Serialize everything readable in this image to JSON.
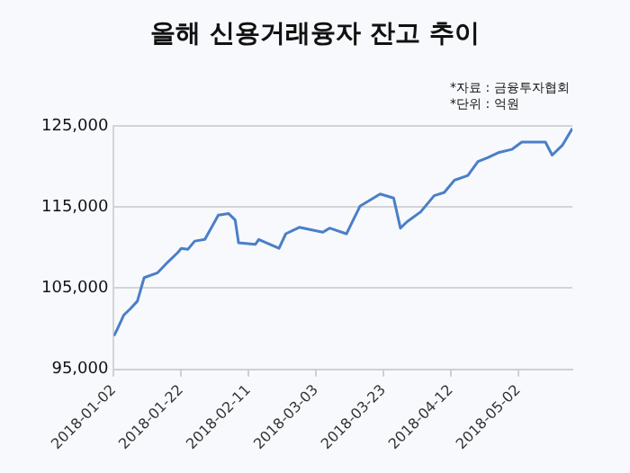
{
  "chart_data": {
    "type": "line",
    "title": "올해 신용거래융자 잔고 추이",
    "annotations": [
      "*자료 : 금융투자협회",
      "*단위 : 억원"
    ],
    "x": [
      "2018-01-02",
      "2018-01-03",
      "2018-01-05",
      "2018-01-07",
      "2018-01-09",
      "2018-01-11",
      "2018-01-15",
      "2018-01-18",
      "2018-01-21",
      "2018-01-22",
      "2018-01-24",
      "2018-01-26",
      "2018-01-29",
      "2018-02-02",
      "2018-02-05",
      "2018-02-07",
      "2018-02-08",
      "2018-02-13",
      "2018-02-14",
      "2018-02-20",
      "2018-02-22",
      "2018-02-26",
      "2018-03-05",
      "2018-03-07",
      "2018-03-12",
      "2018-03-16",
      "2018-03-22",
      "2018-03-26",
      "2018-03-28",
      "2018-03-30",
      "2018-04-03",
      "2018-04-07",
      "2018-04-10",
      "2018-04-13",
      "2018-04-17",
      "2018-04-20",
      "2018-04-23",
      "2018-04-26",
      "2018-04-30",
      "2018-05-03",
      "2018-05-10",
      "2018-05-12",
      "2018-05-15",
      "2018-05-18"
    ],
    "series": [
      {
        "color": "#4a7fc8",
        "values": [
          99100,
          99900,
          101700,
          102500,
          103400,
          106300,
          106900,
          108200,
          109400,
          109900,
          109800,
          110800,
          111000,
          114000,
          114200,
          113400,
          110600,
          110400,
          111000,
          109900,
          111700,
          112500,
          111900,
          112400,
          111700,
          115100,
          116600,
          116100,
          112400,
          113200,
          114400,
          116400,
          116800,
          118300,
          118900,
          120600,
          121100,
          121700,
          122100,
          123000,
          123000,
          121400,
          122600,
          124700
        ]
      }
    ],
    "xlim": [
      "2018-01-02",
      "2018-05-18"
    ],
    "xticks": [
      "2018-01-02",
      "2018-01-22",
      "2018-02-11",
      "2018-03-03",
      "2018-03-23",
      "2018-04-12",
      "2018-05-02"
    ],
    "ylim": [
      95000,
      125000
    ],
    "yticks": [
      {
        "value": 95000,
        "label": "95,000"
      },
      {
        "value": 105000,
        "label": "105,000"
      },
      {
        "value": 115000,
        "label": "115,000"
      },
      {
        "value": 125000,
        "label": "125,000"
      }
    ],
    "grid": "y",
    "legend": false,
    "marker": "none",
    "line_style": "solid"
  }
}
